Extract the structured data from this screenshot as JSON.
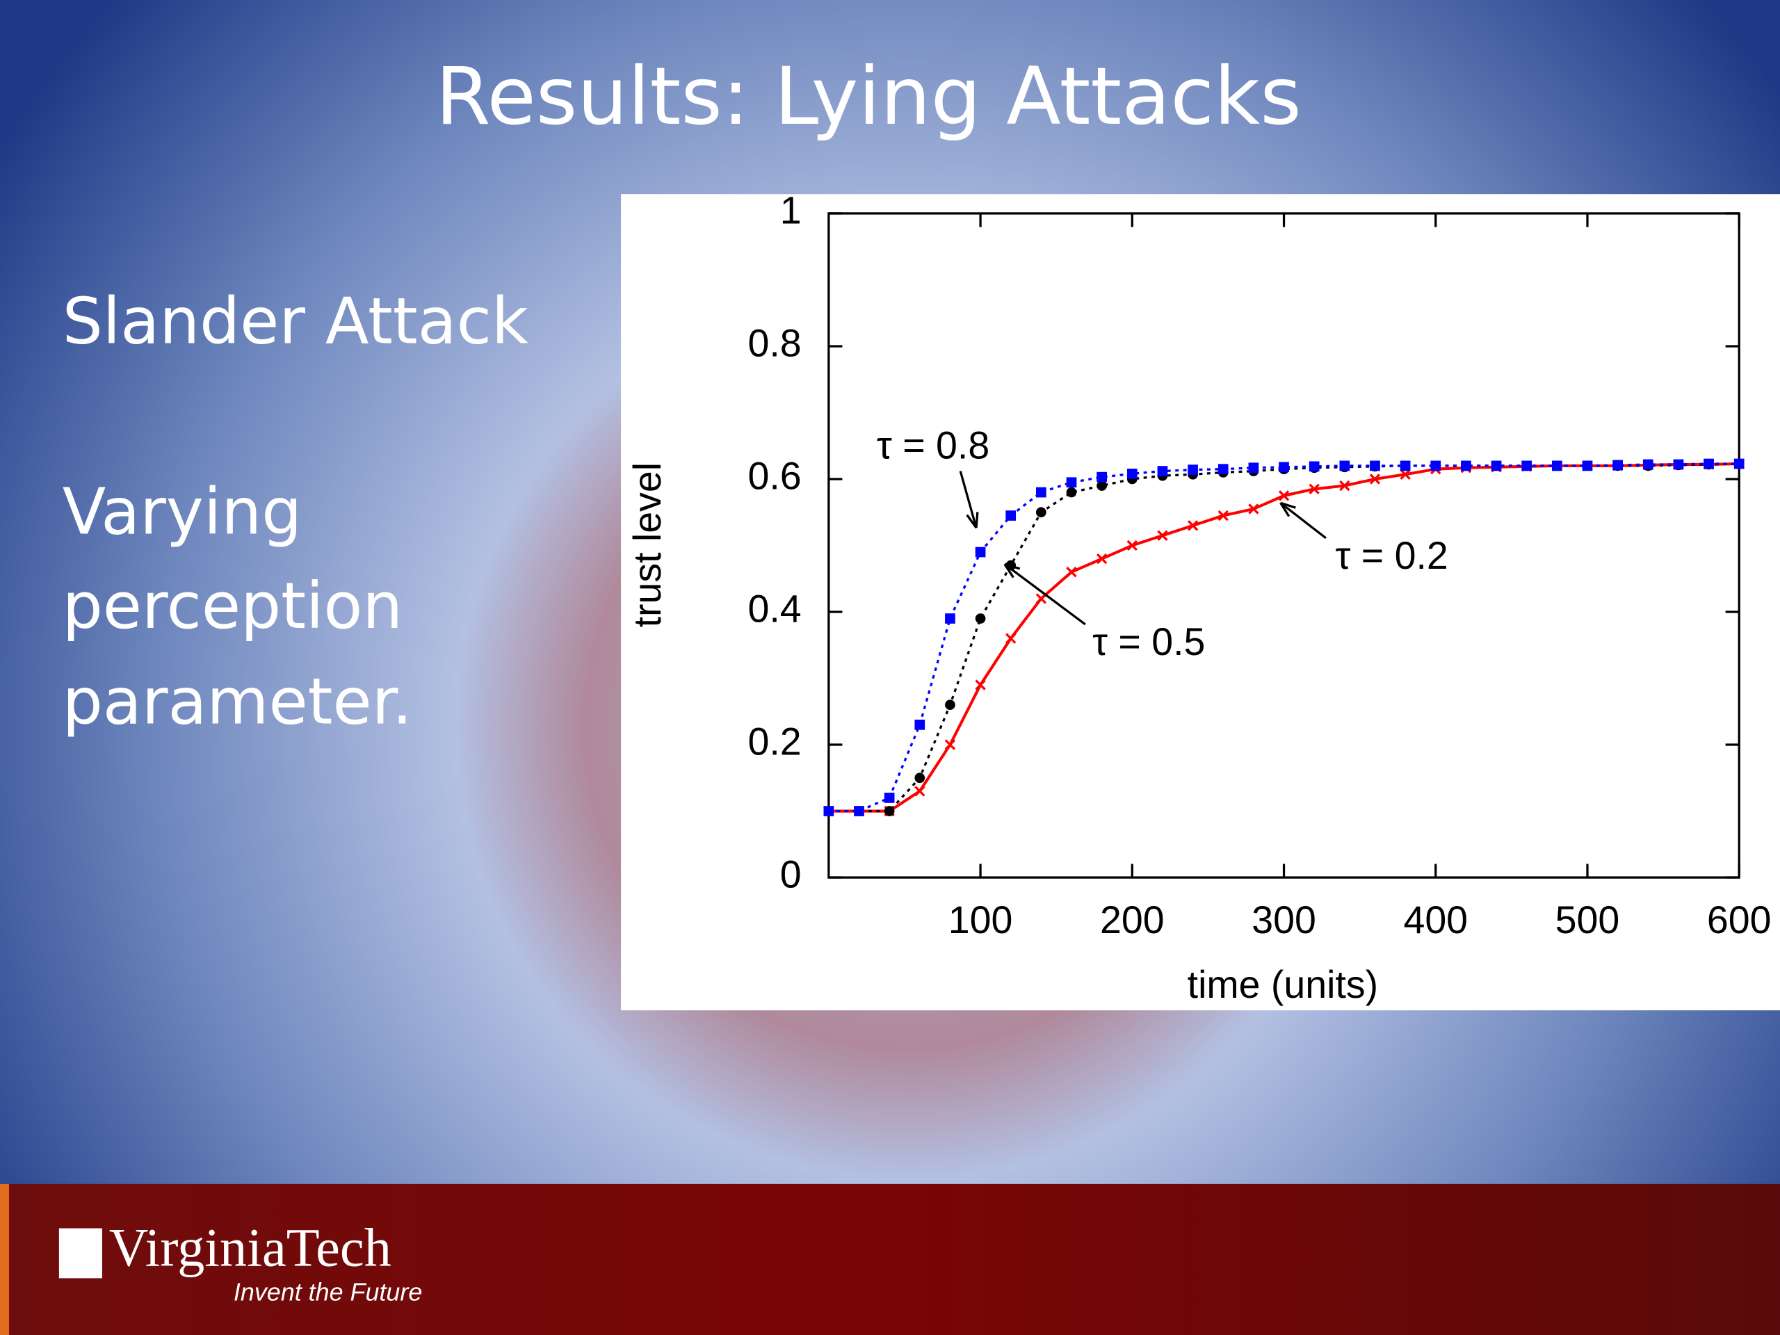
{
  "slide": {
    "title": "Results: Lying Attacks",
    "body_lines": [
      "Slander Attack",
      "Varying",
      "perception",
      "parameter."
    ]
  },
  "footer": {
    "logo": "VirginiaTech",
    "tagline": "Invent the Future"
  },
  "chart_data": {
    "type": "line",
    "xlabel": "time (units)",
    "ylabel": "trust level",
    "x": [
      0,
      20,
      40,
      60,
      80,
      100,
      120,
      140,
      160,
      180,
      200,
      220,
      240,
      260,
      280,
      300,
      320,
      340,
      360,
      380,
      400,
      420,
      440,
      460,
      480,
      500,
      520,
      540,
      560,
      580,
      600
    ],
    "series": [
      {
        "name": "τ = 0.2",
        "color": "#ff0000",
        "marker": "x",
        "dash": "solid",
        "values": [
          0.1,
          0.1,
          0.1,
          0.13,
          0.2,
          0.29,
          0.36,
          0.42,
          0.46,
          0.48,
          0.5,
          0.515,
          0.53,
          0.545,
          0.555,
          0.575,
          0.585,
          0.59,
          0.6,
          0.607,
          0.615,
          0.617,
          0.618,
          0.619,
          0.62,
          0.62,
          0.62,
          0.621,
          0.622,
          0.622,
          0.623
        ]
      },
      {
        "name": "τ = 0.5",
        "color": "#000000",
        "marker": "circle",
        "dash": "dotted",
        "values": [
          0.1,
          0.1,
          0.1,
          0.15,
          0.26,
          0.39,
          0.47,
          0.55,
          0.58,
          0.59,
          0.6,
          0.605,
          0.607,
          0.61,
          0.612,
          0.615,
          0.617,
          0.618,
          0.619,
          0.62,
          0.62,
          0.62,
          0.62,
          0.62,
          0.62,
          0.62,
          0.62,
          0.62,
          0.621,
          0.622,
          0.623
        ]
      },
      {
        "name": "τ = 0.8",
        "color": "#0000ff",
        "marker": "square",
        "dash": "dotted",
        "values": [
          0.1,
          0.1,
          0.12,
          0.23,
          0.39,
          0.49,
          0.545,
          0.58,
          0.595,
          0.603,
          0.608,
          0.612,
          0.614,
          0.615,
          0.617,
          0.618,
          0.619,
          0.62,
          0.62,
          0.62,
          0.62,
          0.62,
          0.62,
          0.62,
          0.62,
          0.62,
          0.621,
          0.622,
          0.622,
          0.623,
          0.623
        ]
      }
    ],
    "xlim": [
      0,
      600
    ],
    "xticks": [
      100,
      200,
      300,
      400,
      500,
      600
    ],
    "ylim": [
      0,
      1
    ],
    "yticks": [
      0,
      0.2,
      0.4,
      0.6,
      0.8,
      1
    ],
    "grid": false
  }
}
